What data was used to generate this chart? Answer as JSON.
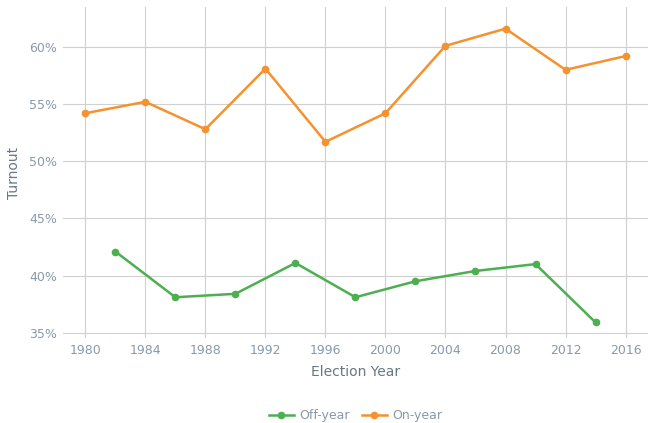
{
  "on_year_x": [
    1980,
    1984,
    1988,
    1992,
    1996,
    2000,
    2004,
    2008,
    2012,
    2016
  ],
  "on_year_y": [
    54.2,
    55.2,
    52.8,
    58.1,
    51.7,
    54.2,
    60.1,
    61.6,
    58.0,
    59.2
  ],
  "off_year_x": [
    1982,
    1986,
    1990,
    1994,
    1998,
    2002,
    2006,
    2010,
    2014
  ],
  "off_year_y": [
    42.1,
    38.1,
    38.4,
    41.1,
    38.1,
    39.5,
    40.4,
    41.0,
    35.9
  ],
  "on_year_color": "#f5922f",
  "off_year_color": "#4caf50",
  "on_year_label": "On-year",
  "off_year_label": "Off-year",
  "xlabel": "Election Year",
  "ylabel": "Turnout",
  "xlim": [
    1978.5,
    2017.5
  ],
  "ylim": [
    34.5,
    63.5
  ],
  "xticks": [
    1980,
    1984,
    1988,
    1992,
    1996,
    2000,
    2004,
    2008,
    2012,
    2016
  ],
  "yticks": [
    35,
    40,
    45,
    50,
    55,
    60
  ],
  "background_color": "#ffffff",
  "grid_color": "#d0d0d0",
  "tick_label_color": "#8899aa",
  "axis_label_color": "#667788",
  "line_width": 1.8,
  "marker_size": 4.5,
  "marker_style": "o"
}
